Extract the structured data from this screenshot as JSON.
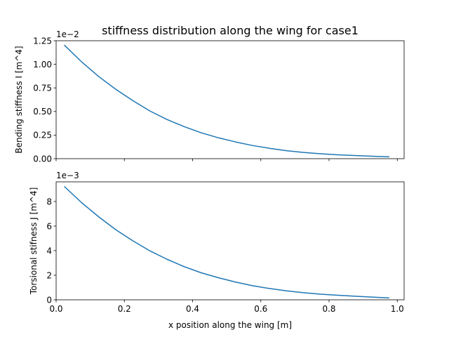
{
  "title": "stiffness distribution along the wing for case1",
  "colors": {
    "series": "#1f77b4"
  },
  "chart_data": [
    {
      "type": "line",
      "ylabel": "Bending stiffness I [m^4]",
      "offset_label": "1e−2",
      "xlim": [
        0.0,
        1.02
      ],
      "ylim": [
        0.0,
        1.25
      ],
      "yticks": [
        "0.00",
        "0.25",
        "0.50",
        "0.75",
        "1.00",
        "1.25"
      ],
      "grid": false,
      "x": [
        0.025,
        0.075,
        0.125,
        0.175,
        0.225,
        0.275,
        0.325,
        0.375,
        0.425,
        0.475,
        0.525,
        0.575,
        0.625,
        0.675,
        0.725,
        0.775,
        0.825,
        0.875,
        0.925,
        0.975
      ],
      "values": [
        1.2,
        1.025,
        0.87,
        0.735,
        0.615,
        0.505,
        0.415,
        0.34,
        0.275,
        0.222,
        0.178,
        0.14,
        0.11,
        0.085,
        0.066,
        0.052,
        0.041,
        0.033,
        0.026,
        0.02
      ]
    },
    {
      "type": "line",
      "xlabel": "x position along the wing [m]",
      "ylabel": "Torsional stifness J [m^4]",
      "offset_label": "1e−3",
      "xlim": [
        0.0,
        1.02
      ],
      "ylim": [
        0.0,
        9.6
      ],
      "xticks": [
        "0.0",
        "0.2",
        "0.4",
        "0.6",
        "0.8",
        "1.0"
      ],
      "yticks": [
        "0",
        "2",
        "4",
        "6",
        "8"
      ],
      "grid": false,
      "x": [
        0.025,
        0.075,
        0.125,
        0.175,
        0.225,
        0.275,
        0.325,
        0.375,
        0.425,
        0.475,
        0.525,
        0.575,
        0.625,
        0.675,
        0.725,
        0.775,
        0.825,
        0.875,
        0.925,
        0.975
      ],
      "values": [
        9.2,
        7.9,
        6.75,
        5.7,
        4.8,
        3.98,
        3.3,
        2.7,
        2.2,
        1.8,
        1.45,
        1.15,
        0.92,
        0.73,
        0.58,
        0.46,
        0.37,
        0.29,
        0.22,
        0.15
      ]
    }
  ]
}
